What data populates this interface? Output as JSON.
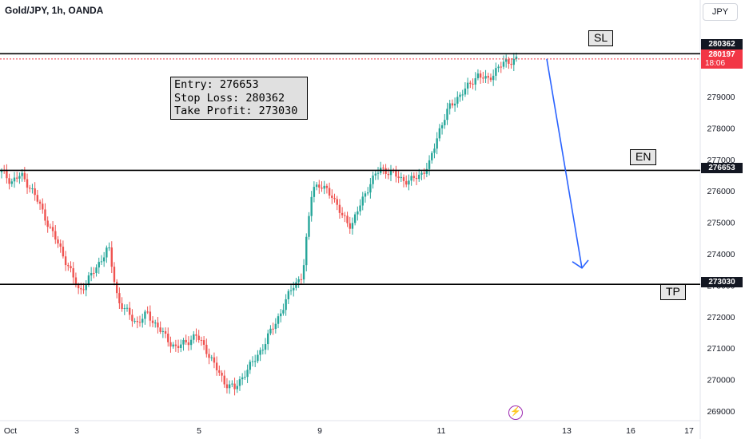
{
  "header": {
    "symbol": "Gold/JPY, 1h, OANDA",
    "currency": "JPY"
  },
  "info_box": {
    "entry": "Entry: 276653",
    "stop_loss": "Stop Loss: 280362",
    "take_profit": "Take Profit: 273030"
  },
  "levels": {
    "sl_label": "SL",
    "en_label": "EN",
    "tp_label": "TP"
  },
  "price_tags": {
    "sl": "280362",
    "current": "280197",
    "countdown": "18:06",
    "en": "276653",
    "tp": "273030"
  },
  "icons": {
    "lightning": "lightning-icon"
  },
  "colors": {
    "up": "#26a69a",
    "down": "#ef5350",
    "arrow": "#2962ff",
    "current_line": "#f23645"
  },
  "chart_data": {
    "type": "candlestick",
    "title": "Gold/JPY, 1h, OANDA",
    "ylim": [
      268800,
      281600
    ],
    "y_ticks": [
      269000,
      270000,
      271000,
      272000,
      273000,
      274000,
      275000,
      276000,
      277000,
      278000,
      279000,
      280000
    ],
    "x_ticks": [
      "Oct",
      "3",
      "5",
      "9",
      "11",
      "13",
      "16",
      "17"
    ],
    "levels": [
      {
        "label": "SL",
        "value": 280362
      },
      {
        "label": "EN",
        "value": 276653
      },
      {
        "label": "TP",
        "value": 273030
      }
    ],
    "current_price": 280197,
    "forecast_arrow": {
      "from": {
        "x": "12",
        "y": 280200
      },
      "to": {
        "x": "13",
        "y": 273700
      }
    },
    "close_path": [
      [
        "Oct",
        276600
      ],
      [
        "Oct",
        276300
      ],
      [
        "Oct",
        276500
      ],
      [
        "Oct",
        276100
      ],
      [
        "Oct",
        275500
      ],
      [
        "Oct",
        274800
      ],
      [
        "Oct",
        274200
      ],
      [
        "Oct",
        273500
      ],
      [
        "3",
        272800
      ],
      [
        "3",
        273200
      ],
      [
        "3",
        273700
      ],
      [
        "3",
        274200
      ],
      [
        "3",
        272500
      ],
      [
        "3",
        272100
      ],
      [
        "3",
        271800
      ],
      [
        "3",
        272100
      ],
      [
        "5",
        271700
      ],
      [
        "5",
        271300
      ],
      [
        "5",
        271000
      ],
      [
        "5",
        271200
      ],
      [
        "5",
        271400
      ],
      [
        "5",
        271000
      ],
      [
        "5",
        270400
      ],
      [
        "5",
        269900
      ],
      [
        "9",
        269700
      ],
      [
        "9",
        270200
      ],
      [
        "9",
        270600
      ],
      [
        "9",
        271100
      ],
      [
        "9",
        271700
      ],
      [
        "9",
        272300
      ],
      [
        "9",
        273000
      ],
      [
        "9",
        273300
      ],
      [
        "9",
        276200
      ],
      [
        "9",
        276100
      ],
      [
        "9",
        275900
      ],
      [
        "9",
        275200
      ],
      [
        "9",
        274900
      ],
      [
        "9",
        275600
      ],
      [
        "9",
        276300
      ],
      [
        "9",
        276700
      ],
      [
        "11",
        276600
      ],
      [
        "11",
        276400
      ],
      [
        "11",
        276300
      ],
      [
        "11",
        276500
      ],
      [
        "11",
        276800
      ],
      [
        "11",
        277900
      ],
      [
        "11",
        278600
      ],
      [
        "11",
        279000
      ],
      [
        "11",
        279300
      ],
      [
        "11",
        279700
      ],
      [
        "11",
        279500
      ],
      [
        "11",
        279900
      ],
      [
        "11",
        280100
      ],
      [
        "11",
        280197
      ]
    ]
  }
}
